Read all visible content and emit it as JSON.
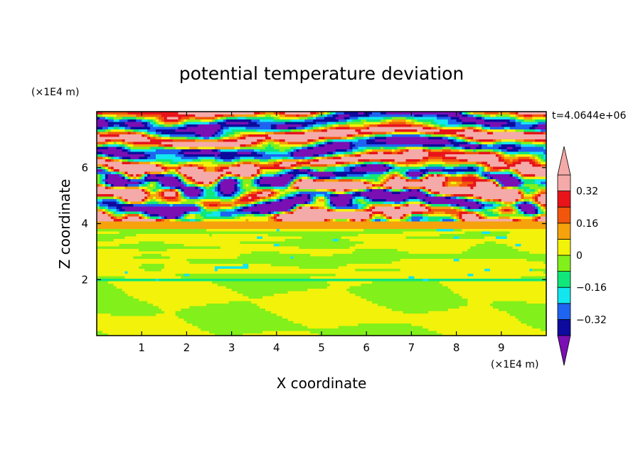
{
  "chart_data": {
    "type": "heatmap",
    "title": "potential temperature deviation",
    "xlabel": "X coordinate",
    "ylabel": "Z coordinate",
    "x_unit": "(×1E4 m)",
    "y_unit": "(×1E4 m)",
    "time_label": "t=4.0644e+06",
    "xlim": [
      0,
      10
    ],
    "ylim": [
      0,
      8
    ],
    "x_ticks": [
      1,
      2,
      3,
      4,
      5,
      6,
      7,
      8,
      9
    ],
    "y_ticks": [
      2,
      4,
      6
    ],
    "colorbar": {
      "levels": [
        -0.4,
        -0.32,
        -0.24,
        -0.16,
        -0.08,
        0,
        0.08,
        0.16,
        0.24,
        0.32,
        0.4
      ],
      "labels": [
        "0.32",
        "0.16",
        "0",
        "−0.16",
        "−0.32"
      ],
      "label_values": [
        0.32,
        0.16,
        0,
        -0.16,
        -0.32
      ],
      "colors": [
        "#7a0fb4",
        "#0d0b9e",
        "#1e64f0",
        "#12e6ee",
        "#10e67a",
        "#82f01a",
        "#f2f20a",
        "#f5a20c",
        "#f2560c",
        "#e8141a",
        "#f4aaa8"
      ],
      "extend": "both"
    },
    "field": {
      "description_layers": [
        {
          "z_range": [
            0,
            2
          ],
          "dominant_level_index": 5,
          "secondary_level_index": 4
        },
        {
          "z_range": [
            2,
            4
          ],
          "dominant_level_index": 4,
          "secondary_level_index": 5
        },
        {
          "z_range": [
            4,
            6
          ],
          "dominant_level_index": 10,
          "secondary_level_index": 0
        },
        {
          "z_range": [
            6,
            8
          ],
          "dominant_level_index": 10,
          "secondary_level_index": 0
        }
      ]
    }
  }
}
